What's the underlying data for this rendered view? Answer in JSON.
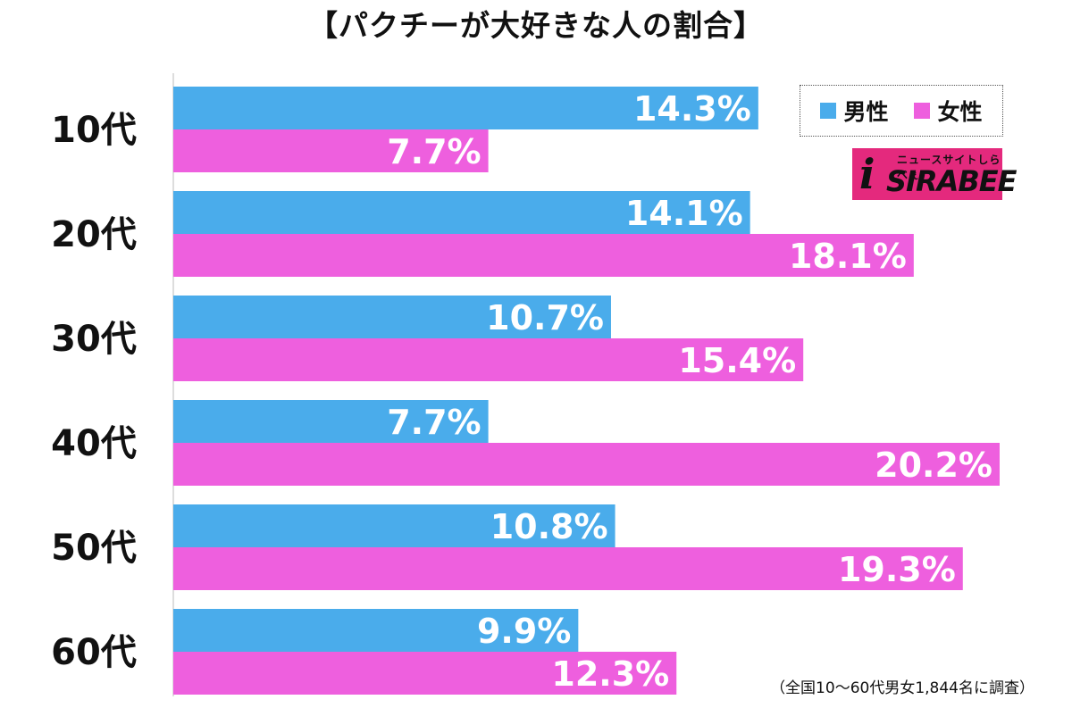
{
  "chart_data": {
    "type": "bar",
    "orientation": "horizontal",
    "title": "【パクチーが大好きな人の割合】",
    "categories": [
      "10代",
      "20代",
      "30代",
      "40代",
      "50代",
      "60代"
    ],
    "series": [
      {
        "name": "男性",
        "color": "#4aaceb",
        "values": [
          14.3,
          14.1,
          10.7,
          7.7,
          10.8,
          9.9
        ],
        "labels": [
          "14.3%",
          "14.1%",
          "10.7%",
          "7.7%",
          "10.8%",
          "9.9%"
        ]
      },
      {
        "name": "女性",
        "color": "#ee5fde",
        "values": [
          7.7,
          18.1,
          15.4,
          20.2,
          19.3,
          12.3
        ],
        "labels": [
          "7.7%",
          "18.1%",
          "15.4%",
          "20.2%",
          "19.3%",
          "12.3%"
        ]
      }
    ],
    "xlim": [
      0,
      20.2
    ],
    "legend": "top-right",
    "note": "（全国10〜60代男女1,844名に調査）"
  },
  "logo": {
    "kana": "ニュースサイトしらべぇ",
    "text": "SIRABEE",
    "i": "i",
    "color": "#e4297d"
  }
}
